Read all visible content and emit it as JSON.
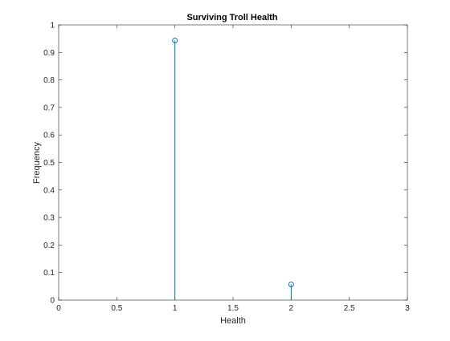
{
  "chart_data": {
    "type": "stem",
    "title": "Surviving Troll Health",
    "xlabel": "Health",
    "ylabel": "Frequency",
    "xlim": [
      0,
      3
    ],
    "ylim": [
      0,
      1
    ],
    "xticks": [
      0,
      0.5,
      1,
      1.5,
      2,
      2.5,
      3
    ],
    "xtick_labels": [
      "0",
      "0.5",
      "1",
      "1.5",
      "2",
      "2.5",
      "3"
    ],
    "yticks": [
      0,
      0.1,
      0.2,
      0.3,
      0.4,
      0.5,
      0.6,
      0.7,
      0.8,
      0.9,
      1
    ],
    "ytick_labels": [
      "0",
      "0.1",
      "0.2",
      "0.3",
      "0.4",
      "0.5",
      "0.6",
      "0.7",
      "0.8",
      "0.9",
      "1"
    ],
    "grid": false,
    "series": [
      {
        "x": [
          1,
          2
        ],
        "y": [
          0.943,
          0.057
        ],
        "color": "#0072BD",
        "marker": "circle"
      }
    ]
  }
}
